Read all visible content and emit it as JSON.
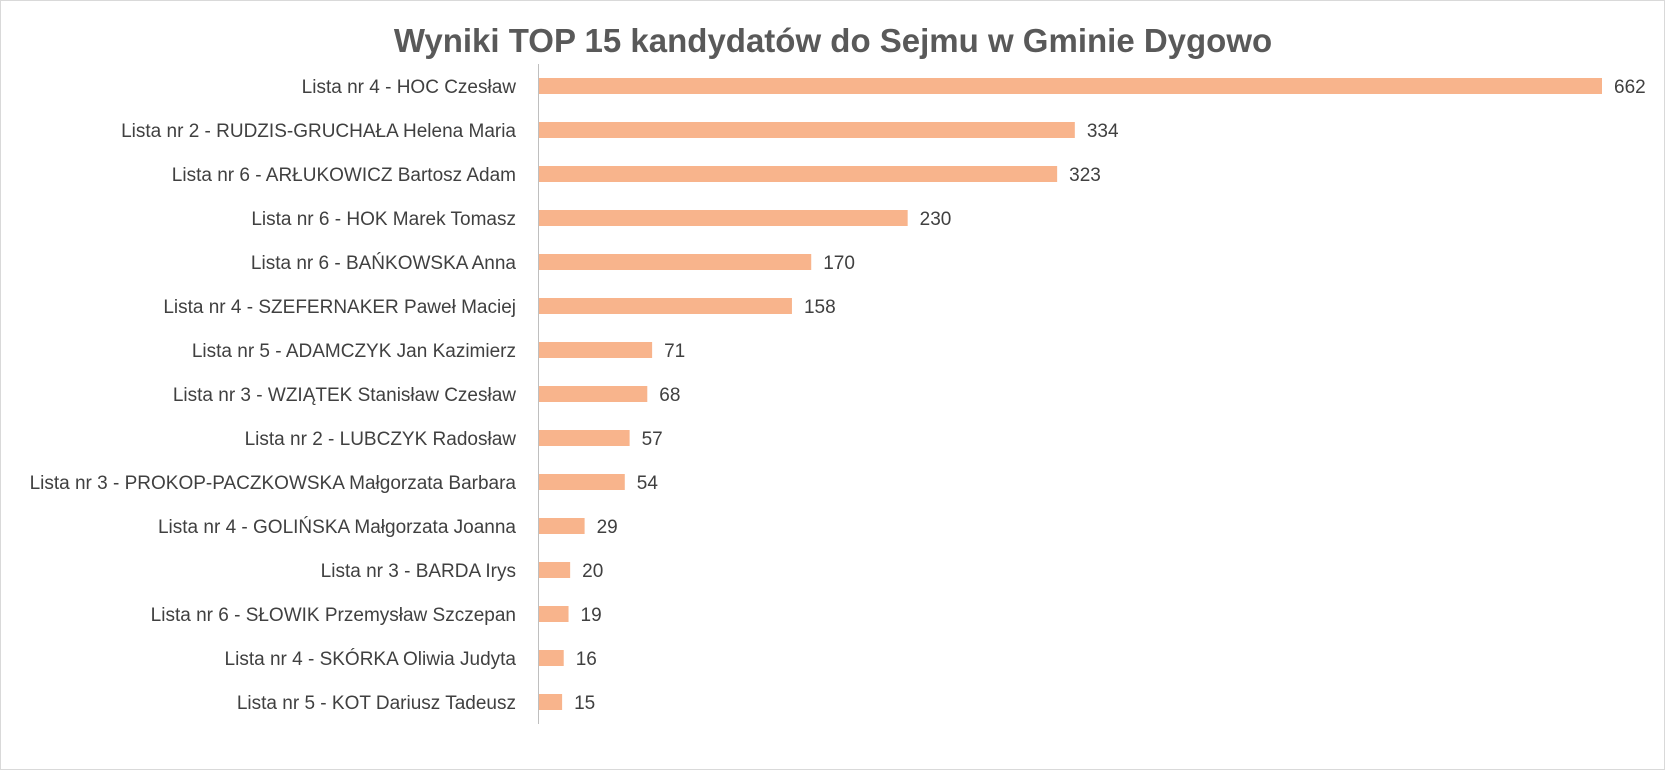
{
  "chart_data": {
    "type": "bar",
    "orientation": "horizontal",
    "title": "Wyniki TOP 15 kandydatów do Sejmu w Gminie Dygowo",
    "xlabel": "",
    "ylabel": "",
    "categories": [
      "Lista nr 4 - HOC Czesław",
      "Lista nr 2 - RUDZIS-GRUCHAŁA Helena Maria",
      "Lista nr 6 - ARŁUKOWICZ Bartosz Adam",
      "Lista nr 6 - HOK Marek Tomasz",
      "Lista nr 6 - BAŃKOWSKA Anna",
      "Lista nr 4 - SZEFERNAKER Paweł Maciej",
      "Lista nr 5 - ADAMCZYK Jan Kazimierz",
      "Lista nr 3 - WZIĄTEK Stanisław Czesław",
      "Lista nr 2 - LUBCZYK Radosław",
      "Lista nr 3 - PROKOP-PACZKOWSKA Małgorzata Barbara",
      "Lista nr 4 - GOLIŃSKA Małgorzata Joanna",
      "Lista nr 3 - BARDA Irys",
      "Lista nr 6 - SŁOWIK Przemysław Szczepan",
      "Lista nr 4 - SKÓRKA Oliwia Judyta",
      "Lista nr 5 - KOT Dariusz Tadeusz"
    ],
    "values": [
      662,
      334,
      323,
      230,
      170,
      158,
      71,
      68,
      57,
      54,
      29,
      20,
      19,
      16,
      15
    ],
    "xlim": [
      0,
      662
    ],
    "data_labels": true,
    "grid": false,
    "legend": "none",
    "bar_color": "#f8b48c",
    "axis_color": "#bfbfbf",
    "text_color": "#404040",
    "title_color": "#595959"
  }
}
